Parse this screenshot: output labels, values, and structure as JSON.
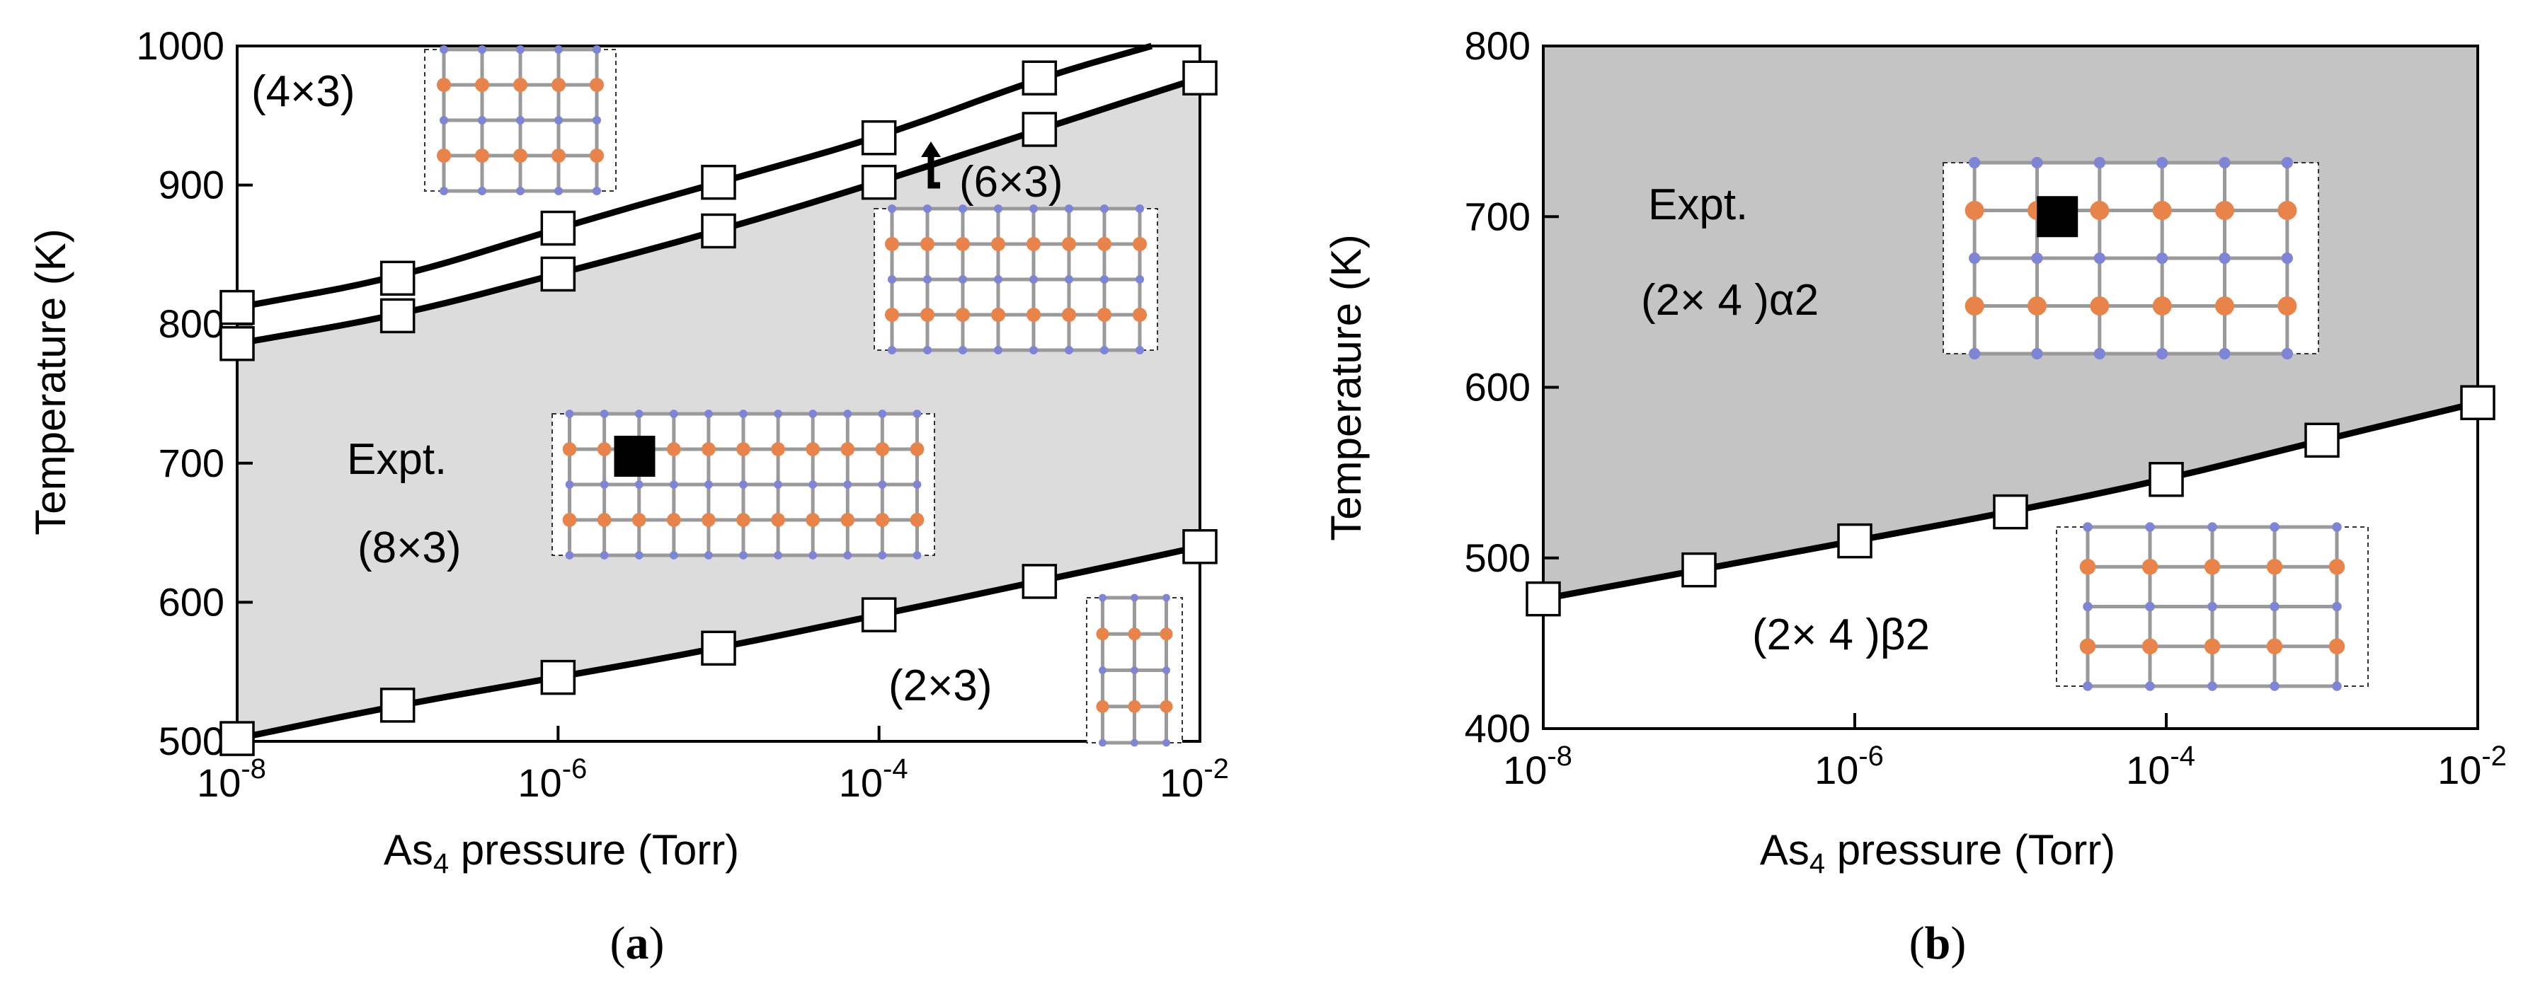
{
  "chart_data": [
    {
      "type": "line",
      "panel": "a",
      "xlabel_main": "As",
      "xlabel_sub": "4",
      "xlabel_rest": " pressure (Torr)",
      "ylabel": "Temperature (K)",
      "x_scale": "log",
      "xlim": [
        1e-08,
        0.01
      ],
      "ylim": [
        500,
        1000
      ],
      "x_ticks": [
        {
          "base": "10",
          "exp": "-8",
          "value": 1e-08
        },
        {
          "base": "10",
          "exp": "-6",
          "value": 1e-06
        },
        {
          "base": "10",
          "exp": "-4",
          "value": 0.0001
        },
        {
          "base": "10",
          "exp": "-2",
          "value": 0.01
        }
      ],
      "y_ticks": [
        "500",
        "600",
        "700",
        "800",
        "900",
        "1000"
      ],
      "y_tick_values": [
        500,
        600,
        700,
        800,
        900,
        1000
      ],
      "grid": false,
      "shaded_color": "#dcdcdc",
      "series": [
        {
          "x": [
            1e-08,
            1e-07,
            1e-06,
            1e-05,
            0.0001,
            0.001,
            0.01
          ],
          "y": [
            502,
            526,
            546,
            567,
            591,
            615,
            640
          ]
        },
        {
          "x": [
            1e-08,
            1e-07,
            1e-06,
            1e-05,
            0.0001,
            0.001,
            0.01
          ],
          "y": [
            786,
            806,
            836,
            867,
            902,
            940,
            977
          ]
        },
        {
          "x": [
            1e-08,
            1e-07,
            1e-06,
            1e-05,
            0.0001,
            0.001,
            0.005
          ],
          "y": [
            812,
            833,
            869,
            902,
            934,
            977,
            1000
          ]
        }
      ],
      "markers": [
        {
          "x": 1e-08,
          "y": 502
        },
        {
          "x": 1e-07,
          "y": 526
        },
        {
          "x": 1e-06,
          "y": 546
        },
        {
          "x": 1e-05,
          "y": 567
        },
        {
          "x": 0.0001,
          "y": 591
        },
        {
          "x": 0.001,
          "y": 615
        },
        {
          "x": 0.01,
          "y": 640
        },
        {
          "x": 1e-08,
          "y": 786
        },
        {
          "x": 1e-07,
          "y": 806
        },
        {
          "x": 1e-06,
          "y": 836
        },
        {
          "x": 1e-05,
          "y": 867
        },
        {
          "x": 0.0001,
          "y": 902
        },
        {
          "x": 0.001,
          "y": 940
        },
        {
          "x": 0.01,
          "y": 977
        },
        {
          "x": 1e-08,
          "y": 812
        },
        {
          "x": 1e-07,
          "y": 833
        },
        {
          "x": 1e-06,
          "y": 869
        },
        {
          "x": 1e-05,
          "y": 902
        },
        {
          "x": 0.0001,
          "y": 934
        },
        {
          "x": 0.001,
          "y": 977
        }
      ],
      "expt_point": {
        "x": 3e-06,
        "y": 705
      },
      "annotations": {
        "phase_4x3": "(4×3)",
        "phase_6x3": "(6×3)",
        "phase_8x3": "(8×3)",
        "phase_2x3": "(2×3)",
        "expt": "Expt."
      }
    },
    {
      "type": "line",
      "panel": "b",
      "xlabel_main": "As",
      "xlabel_sub": "4",
      "xlabel_rest": " pressure (Torr)",
      "ylabel": "Temperature (K)",
      "x_scale": "log",
      "xlim": [
        1e-08,
        0.01
      ],
      "ylim": [
        400,
        800
      ],
      "x_ticks": [
        {
          "base": "10",
          "exp": "-8",
          "value": 1e-08
        },
        {
          "base": "10",
          "exp": "-6",
          "value": 1e-06
        },
        {
          "base": "10",
          "exp": "-4",
          "value": 0.0001
        },
        {
          "base": "10",
          "exp": "-2",
          "value": 0.01
        }
      ],
      "y_ticks": [
        "400",
        "500",
        "600",
        "700",
        "800"
      ],
      "y_tick_values": [
        400,
        500,
        600,
        700,
        800
      ],
      "grid": false,
      "shaded_color": "#c4c4c4",
      "series": [
        {
          "x": [
            1e-08,
            1e-07,
            1e-06,
            1e-05,
            0.0001,
            0.001,
            0.01
          ],
          "y": [
            476,
            493,
            510,
            527,
            546,
            569,
            591
          ]
        }
      ],
      "markers": [
        {
          "x": 1e-08,
          "y": 476
        },
        {
          "x": 1e-07,
          "y": 493
        },
        {
          "x": 1e-06,
          "y": 510
        },
        {
          "x": 1e-05,
          "y": 527
        },
        {
          "x": 0.0001,
          "y": 546
        },
        {
          "x": 0.001,
          "y": 569
        },
        {
          "x": 0.01,
          "y": 591
        }
      ],
      "expt_point": {
        "x": 2e-05,
        "y": 700
      },
      "annotations": {
        "phase_a2": "(2× 4 )α2",
        "phase_b2": "(2× 4 )β2",
        "expt": "Expt."
      }
    }
  ],
  "panel_labels": {
    "a_open": "(",
    "a_letter": "a",
    "a_close": ")",
    "b_open": "(",
    "b_letter": "b",
    "b_close": ")"
  },
  "atom_colors": {
    "arsenic": "#e8834a",
    "gallium": "#7f85d6",
    "bond": "#9a9a9a"
  }
}
